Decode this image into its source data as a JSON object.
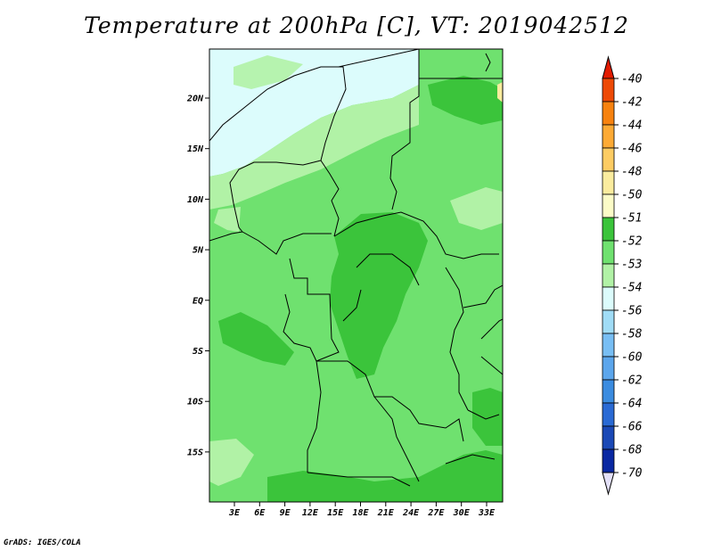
{
  "title": "Temperature at 200hPa [C], VT: 2019042512",
  "credit": "GrADS: IGES/COLA",
  "map": {
    "lat_labels": [
      "20N",
      "15N",
      "10N",
      "5N",
      "EQ",
      "5S",
      "10S",
      "15S"
    ],
    "lon_labels": [
      "3E",
      "6E",
      "9E",
      "12E",
      "15E",
      "18E",
      "21E",
      "24E",
      "27E",
      "30E",
      "33E"
    ]
  },
  "colorbar": {
    "labels": [
      "-40",
      "-42",
      "-44",
      "-46",
      "-48",
      "-50",
      "-51",
      "-52",
      "-53",
      "-54",
      "-56",
      "-58",
      "-60",
      "-62",
      "-64",
      "-66",
      "-68",
      "-70"
    ],
    "colors": [
      "#e21b00",
      "#ee4a06",
      "#f7820f",
      "#fdaa35",
      "#fdcc63",
      "#fbec9e",
      "#fcfcc7",
      "#3bc43b",
      "#6fe16f",
      "#b1f2a6",
      "#dcfcfc",
      "#a0dcf6",
      "#78bef4",
      "#5ca6ec",
      "#3b8ce0",
      "#2a6ad4",
      "#1b49b6",
      "#0a28a2",
      "#06086a"
    ],
    "top_color": "#e21b00",
    "bottom_color": "#e3e0f8"
  }
}
